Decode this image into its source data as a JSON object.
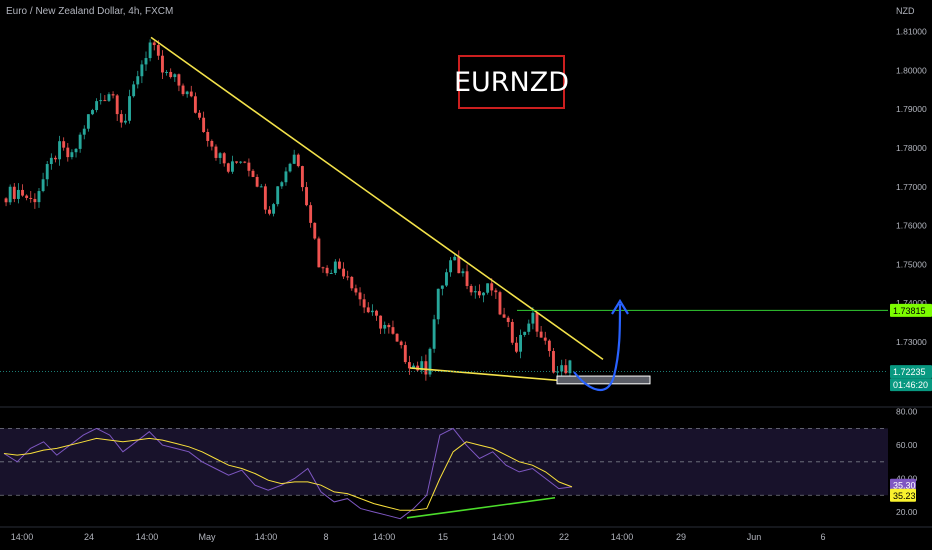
{
  "header": {
    "title": "Euro / New Zealand Dollar, 4h, FXCM",
    "currency": "NZD"
  },
  "label": "EURNZD",
  "price_badges": [
    {
      "name": "target-level",
      "value": "1.73815",
      "bg": "#7cfc00",
      "fg": "#000000"
    },
    {
      "name": "last-price",
      "value": "1.72235",
      "bg": "#089981",
      "fg": "#ffffff"
    },
    {
      "name": "countdown",
      "value": "01:46:20",
      "bg": "#089981",
      "fg": "#ffffff"
    }
  ],
  "rsi_badges": [
    {
      "name": "rsi-value",
      "value": "35.30",
      "bg": "#7e57c2",
      "fg": "#ffffff"
    },
    {
      "name": "rsi-ma-value",
      "value": "35.23",
      "bg": "#f9f22e",
      "fg": "#000000"
    }
  ],
  "colors": {
    "up": "#26a69a",
    "down": "#ef5350",
    "trend": "#f3e24a",
    "target": "#32cd32",
    "arrow": "#2962ff",
    "rsi": "#7e57c2",
    "rsi_ma": "#f9e03b",
    "divergence": "#4cdd2b",
    "label_border": "#cc1f1f"
  },
  "chart_data": [
    {
      "type": "candlestick",
      "title": "Euro / New Zealand Dollar, 4h, FXCM",
      "ylabel": "NZD",
      "ylim": [
        1.714,
        1.8135
      ],
      "y_ticks": [
        "1.81000",
        "1.80000",
        "1.79000",
        "1.78000",
        "1.77000",
        "1.76000",
        "1.75000",
        "1.74000",
        "1.73000"
      ],
      "x_ticks": [
        "14:00",
        "24",
        "14:00",
        "May",
        "14:00",
        "8",
        "14:00",
        "15",
        "14:00",
        "22",
        "14:00",
        "29",
        "Jun",
        "6"
      ],
      "anchors": [
        1.768,
        1.769,
        1.766,
        1.773,
        1.78,
        1.777,
        1.786,
        1.792,
        1.795,
        1.786,
        1.799,
        1.807,
        1.799,
        1.797,
        1.793,
        1.786,
        1.779,
        1.774,
        1.778,
        1.773,
        1.764,
        1.772,
        1.779,
        1.766,
        1.748,
        1.75,
        1.748,
        1.741,
        1.736,
        1.734,
        1.728,
        1.724,
        1.723,
        1.743,
        1.751,
        1.747,
        1.742,
        1.744,
        1.735,
        1.729,
        1.737,
        1.73,
        1.722,
        1.724
      ],
      "levels": {
        "resistance_line": [
          1.8085,
          1.7255
        ],
        "support_line": [
          1.7233,
          1.7198
        ],
        "target": 1.73815,
        "last": 1.72235,
        "zone": [
          1.7192,
          1.7212
        ]
      }
    },
    {
      "type": "line",
      "title": "RSI",
      "ylim": [
        14,
        81
      ],
      "y_ticks": [
        "80.00",
        "60.00",
        "40.00",
        "20.00"
      ],
      "bands": [
        70,
        50,
        30
      ],
      "series": [
        {
          "values": [
            55,
            50,
            58,
            62,
            54,
            60,
            66,
            70,
            66,
            56,
            62,
            68,
            60,
            58,
            56,
            50,
            46,
            42,
            45,
            36,
            33,
            36,
            40,
            46,
            32,
            26,
            28,
            22,
            20,
            18,
            16,
            22,
            30,
            66,
            70,
            60,
            52,
            56,
            48,
            44,
            46,
            40,
            34,
            35
          ]
        },
        {
          "values": [
            55,
            54,
            55,
            57,
            58,
            60,
            62,
            64,
            63,
            62,
            63,
            64,
            63,
            61,
            59,
            56,
            52,
            48,
            46,
            43,
            39,
            37,
            38,
            38,
            36,
            32,
            31,
            28,
            25,
            23,
            21,
            21,
            22,
            40,
            56,
            62,
            60,
            58,
            54,
            50,
            48,
            44,
            38,
            35
          ]
        }
      ]
    }
  ]
}
